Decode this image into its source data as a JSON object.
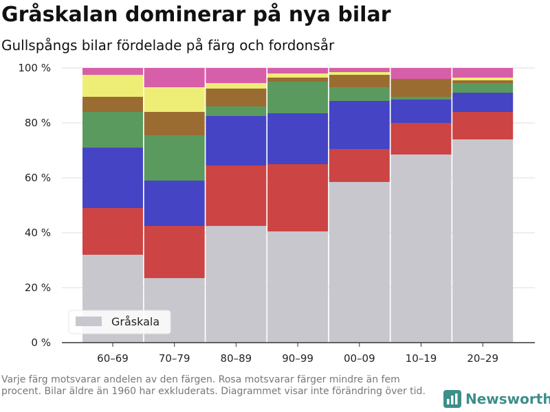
{
  "header": {
    "title": "Gråskalan dominerar på nya bilar",
    "subtitle": "Gullspångs bilar fördelade på färg och fordonsår"
  },
  "footnote": "Varje färg motsvarar andelen av den färgen. Rosa motsvarar färger mindre än fem procent. Bilar äldre än 1960 har exkluderats. Diagrammet visar inte förändring över tid.",
  "brand": {
    "name": "Newsworthy",
    "icon": "bar-chart-logo-icon",
    "color": "#3d8f88"
  },
  "chart_data": {
    "type": "bar",
    "stacked": true,
    "categories": [
      "60–69",
      "70–79",
      "80–89",
      "90–99",
      "00–09",
      "10–19",
      "20–29"
    ],
    "ylim": [
      0,
      100
    ],
    "yticks": [
      0,
      20,
      40,
      60,
      80,
      100
    ],
    "ytick_labels": [
      "0 %",
      "20 %",
      "40 %",
      "60 %",
      "80 %",
      "100 %"
    ],
    "grid": true,
    "legend": {
      "position": "bottom-left",
      "entries": [
        "Gråskala"
      ]
    },
    "series": [
      {
        "name": "Gråskala",
        "color": "#c8c7ce",
        "values": [
          32,
          23.5,
          42.5,
          40.5,
          58.5,
          68.5,
          74
        ]
      },
      {
        "color": "#cc4444",
        "values": [
          17,
          19,
          22,
          24.5,
          12,
          11.5,
          10
        ]
      },
      {
        "color": "#4444c4",
        "values": [
          22,
          16.5,
          18,
          18.5,
          17.5,
          8.5,
          7
        ]
      },
      {
        "color": "#5a9a5e",
        "values": [
          13,
          16.5,
          3.5,
          11.5,
          5,
          1,
          3.5
        ]
      },
      {
        "color": "#9b6c32",
        "values": [
          5.5,
          8.5,
          6.5,
          1.5,
          4.5,
          6.5,
          1
        ]
      },
      {
        "color": "#eeee77",
        "values": [
          8,
          9,
          2,
          1.5,
          1,
          0,
          1
        ]
      },
      {
        "color": "#d75ea8",
        "values": [
          2.5,
          7,
          5.5,
          2,
          1.5,
          4,
          3.5
        ]
      }
    ]
  }
}
